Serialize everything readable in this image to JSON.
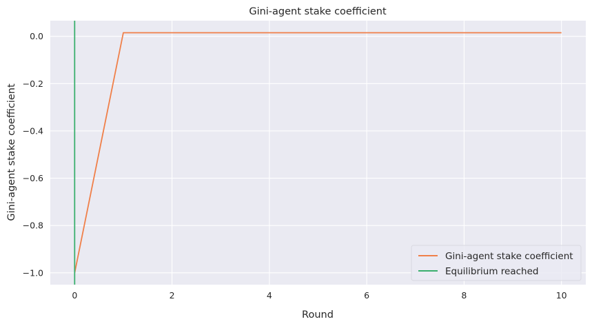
{
  "chart_data": {
    "type": "line",
    "title": "Gini-agent stake coefficient",
    "xlabel": "Round",
    "ylabel": "Gini-agent stake coefficient",
    "xlim": [
      -0.5,
      10.5
    ],
    "ylim": [
      -1.05,
      0.066
    ],
    "xticks": [
      0,
      2,
      4,
      6,
      8,
      10
    ],
    "xtick_labels": [
      "0",
      "2",
      "4",
      "6",
      "8",
      "10"
    ],
    "yticks": [
      0.0,
      -0.2,
      -0.4,
      -0.6,
      -0.8,
      -1.0
    ],
    "ytick_labels": [
      "0.0",
      "−0.2",
      "−0.4",
      "−0.6",
      "−0.8",
      "−1.0"
    ],
    "grid": true,
    "legend_position": "lower-right",
    "series": [
      {
        "name": "Gini-agent stake coefficient",
        "color": "#f07f48",
        "x": [
          0,
          1,
          2,
          3,
          4,
          5,
          6,
          7,
          8,
          9,
          10
        ],
        "y": [
          -1.0,
          0.015,
          0.015,
          0.015,
          0.015,
          0.015,
          0.015,
          0.015,
          0.015,
          0.015,
          0.015
        ]
      }
    ],
    "vlines": [
      {
        "name": "Equilibrium reached",
        "color": "#3aaf6d",
        "x": 0
      }
    ],
    "background_color": "#eaeaf2",
    "grid_color": "#ffffff"
  }
}
